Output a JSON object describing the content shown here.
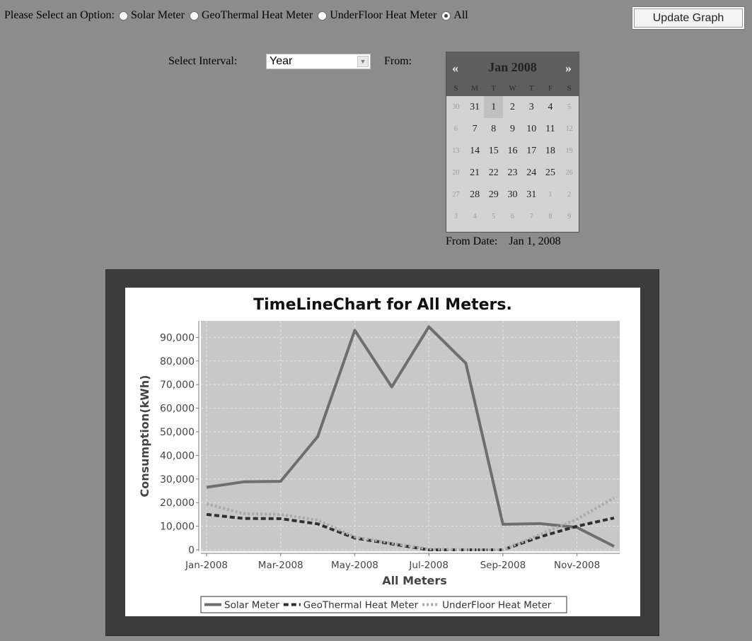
{
  "options": {
    "prompt": "Please Select an Option:",
    "items": [
      {
        "label": "Solar Meter",
        "checked": false
      },
      {
        "label": "GeoThermal Heat Meter",
        "checked": false
      },
      {
        "label": "UnderFloor Heat Meter",
        "checked": false
      },
      {
        "label": "All",
        "checked": true
      }
    ]
  },
  "update_button": "Update Graph",
  "interval": {
    "label": "Select Interval:",
    "value": "Year"
  },
  "from_label": "From:",
  "calendar": {
    "prev": "«",
    "next": "»",
    "title": "Jan 2008",
    "weekdays": [
      "S",
      "M",
      "T",
      "W",
      "T",
      "F",
      "S"
    ],
    "days": [
      {
        "d": "30",
        "muted": true
      },
      {
        "d": "31",
        "muted": false
      },
      {
        "d": "1",
        "selected": true
      },
      {
        "d": "2"
      },
      {
        "d": "3"
      },
      {
        "d": "4"
      },
      {
        "d": "5",
        "muted": true
      },
      {
        "d": "6",
        "muted": true
      },
      {
        "d": "7"
      },
      {
        "d": "8"
      },
      {
        "d": "9"
      },
      {
        "d": "10"
      },
      {
        "d": "11"
      },
      {
        "d": "12",
        "muted": true
      },
      {
        "d": "13",
        "muted": true
      },
      {
        "d": "14"
      },
      {
        "d": "15"
      },
      {
        "d": "16"
      },
      {
        "d": "17"
      },
      {
        "d": "18"
      },
      {
        "d": "19",
        "muted": true
      },
      {
        "d": "20",
        "muted": true
      },
      {
        "d": "21"
      },
      {
        "d": "22"
      },
      {
        "d": "23"
      },
      {
        "d": "24"
      },
      {
        "d": "25"
      },
      {
        "d": "26",
        "muted": true
      },
      {
        "d": "27",
        "muted": true
      },
      {
        "d": "28"
      },
      {
        "d": "29"
      },
      {
        "d": "30"
      },
      {
        "d": "31"
      },
      {
        "d": "1",
        "muted": true
      },
      {
        "d": "2",
        "muted": true
      },
      {
        "d": "3",
        "muted": true
      },
      {
        "d": "4",
        "muted": true
      },
      {
        "d": "5",
        "muted": true
      },
      {
        "d": "6",
        "muted": true
      },
      {
        "d": "7",
        "muted": true
      },
      {
        "d": "8",
        "muted": true
      },
      {
        "d": "9",
        "muted": true
      }
    ]
  },
  "from_date": {
    "label": "From Date:",
    "value": "Jan 1, 2008"
  },
  "chart_data": {
    "type": "line",
    "title": "TimeLineChart for All Meters.",
    "xlabel": "All Meters",
    "ylabel": "Consumption(kWh)",
    "ylim": [
      0,
      97000
    ],
    "yticks": [
      0,
      10000,
      20000,
      30000,
      40000,
      50000,
      60000,
      70000,
      80000,
      90000
    ],
    "ytick_labels": [
      "0",
      "10,000",
      "20,000",
      "30,000",
      "40,000",
      "50,000",
      "60,000",
      "70,000",
      "80,000",
      "90,000"
    ],
    "x": [
      "Jan-2008",
      "Feb-2008",
      "Mar-2008",
      "Apr-2008",
      "May-2008",
      "Jun-2008",
      "Jul-2008",
      "Aug-2008",
      "Sep-2008",
      "Oct-2008",
      "Nov-2008",
      "Dec-2008"
    ],
    "xtick_labels": [
      "Jan-2008",
      "Mar-2008",
      "May-2008",
      "Jul-2008",
      "Sep-2008",
      "Nov-2008"
    ],
    "grid": true,
    "legend_position": "bottom",
    "series": [
      {
        "name": "Solar Meter",
        "style": "solid",
        "color": "#6e6e6e",
        "values": [
          26500,
          28800,
          29000,
          48000,
          93000,
          69000,
          94500,
          79000,
          10800,
          11100,
          9500,
          1500
        ]
      },
      {
        "name": "GeoThermal Heat Meter",
        "style": "dashed",
        "color": "#2f2f2f",
        "values": [
          15000,
          13300,
          13200,
          11000,
          5000,
          2500,
          0,
          0,
          0,
          5500,
          10000,
          13500
        ]
      },
      {
        "name": "UnderFloor Heat Meter",
        "style": "dotted",
        "color": "#a9a9a9",
        "values": [
          19500,
          15300,
          15000,
          12500,
          5500,
          2800,
          300,
          0,
          0,
          6500,
          13000,
          22000
        ]
      }
    ],
    "colors": {
      "plot_bg": "#c8c8c8",
      "grid": "#e6e6e6"
    }
  }
}
